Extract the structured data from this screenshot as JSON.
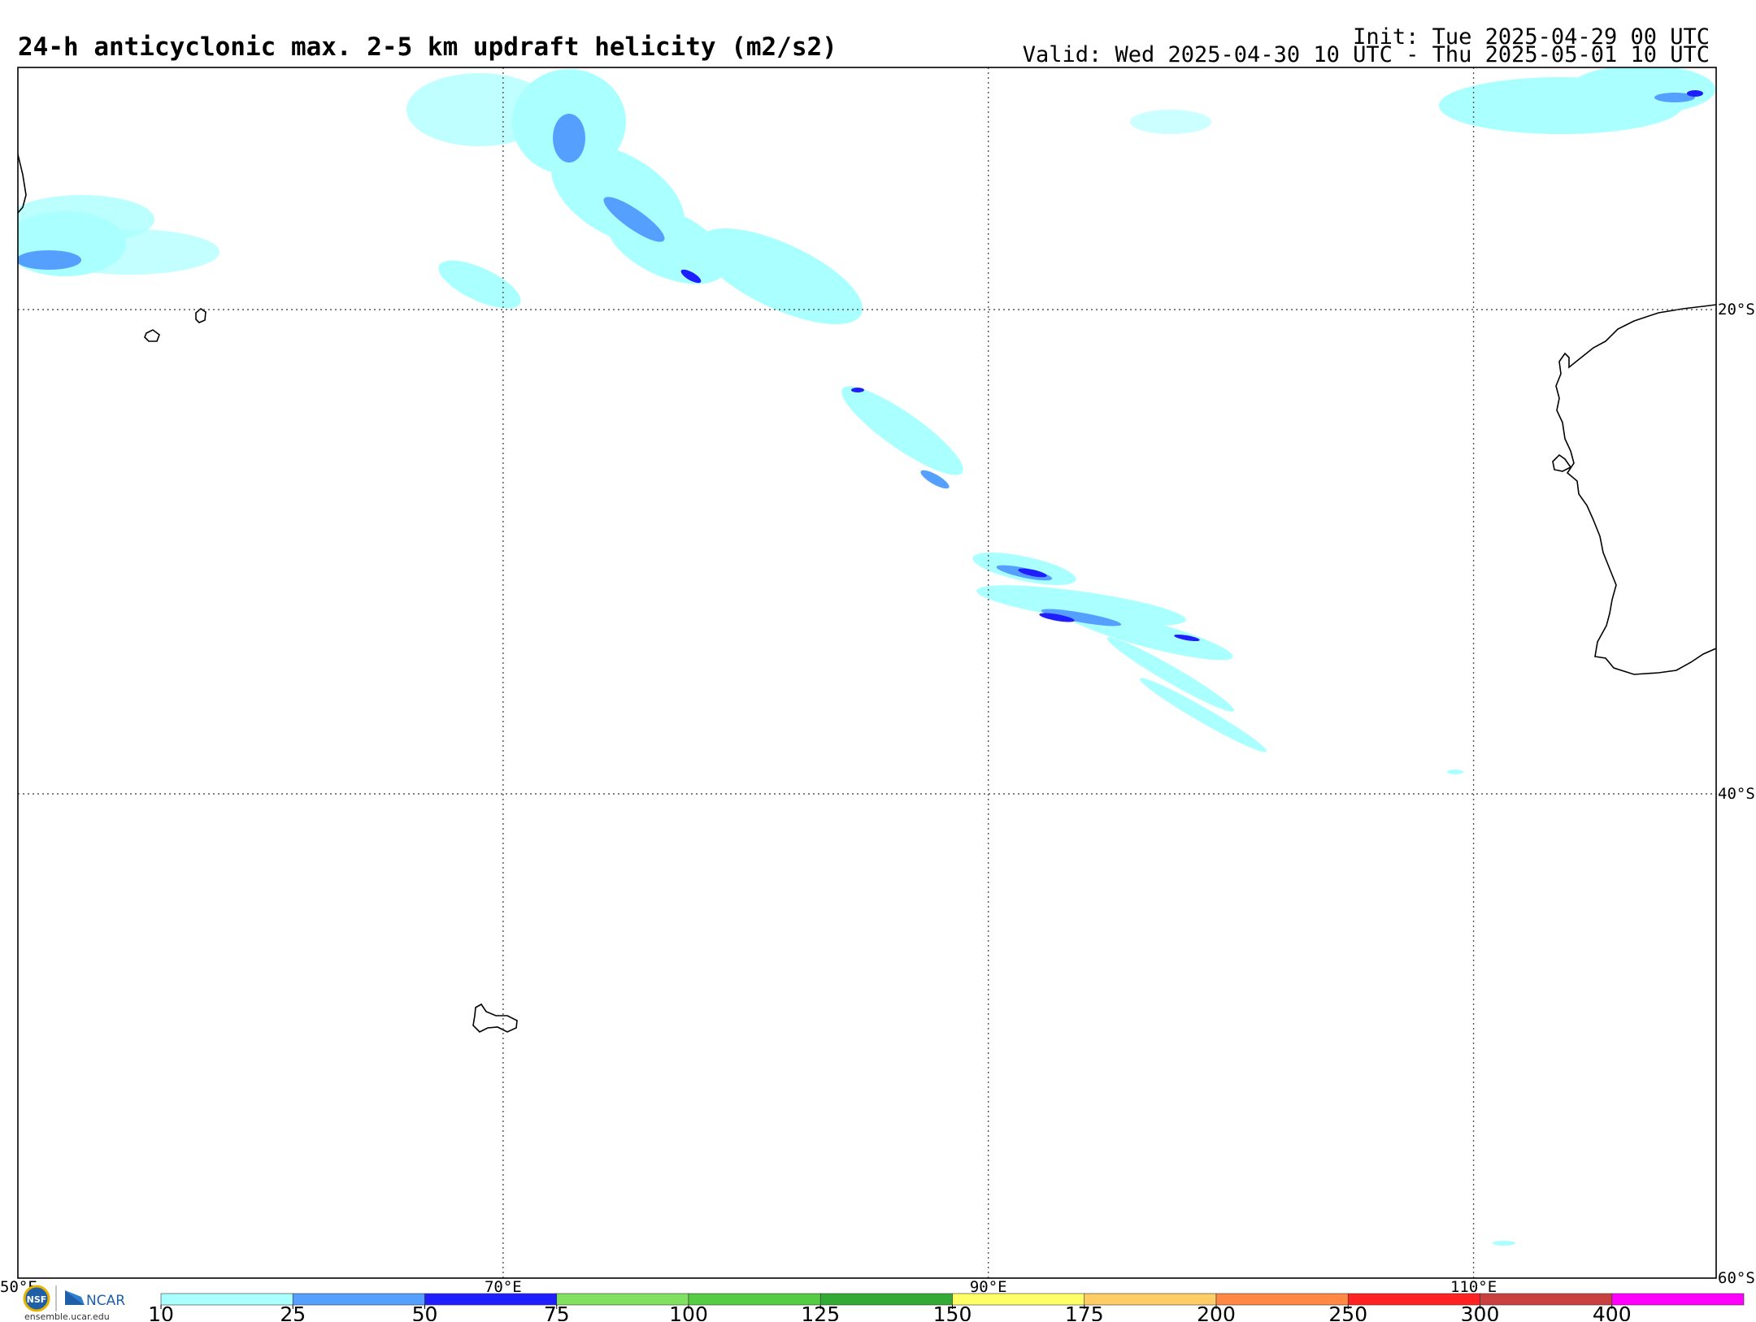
{
  "header": {
    "title": "24-h anticyclonic max. 2-5 km updraft helicity (m2/s2)",
    "init": "Init: Tue 2025-04-29 00 UTC",
    "valid": "Valid: Wed 2025-04-30 10 UTC - Thu 2025-05-01 10 UTC"
  },
  "map": {
    "lon_range": [
      50,
      120
    ],
    "lat_range": [
      -10,
      -60
    ],
    "grid_lons": [
      {
        "value": 70,
        "label": "70°E"
      },
      {
        "value": 90,
        "label": "90°E"
      },
      {
        "value": 110,
        "label": "110°E"
      }
    ],
    "grid_lats": [
      {
        "value": -20,
        "label": "20°S"
      },
      {
        "value": -40,
        "label": "40°S"
      }
    ],
    "corner_lon_label": "50°E",
    "corner_lat_label": "60°S",
    "gridline_style": "dotted"
  },
  "colorbar": {
    "levels": [
      "10",
      "25",
      "50",
      "75",
      "100",
      "125",
      "150",
      "175",
      "200",
      "250",
      "300",
      "400"
    ],
    "colors": [
      "#aaffff",
      "#55a0ff",
      "#1e1eff",
      "#80e060",
      "#55cc44",
      "#33aa33",
      "#ffff66",
      "#ffcc66",
      "#ff8844",
      "#ff2222",
      "#c84040",
      "#ff00ff"
    ]
  },
  "branding": {
    "logo_left": "NSF",
    "logo_right": "NCAR",
    "url": "ensemble.ucar.edu"
  }
}
